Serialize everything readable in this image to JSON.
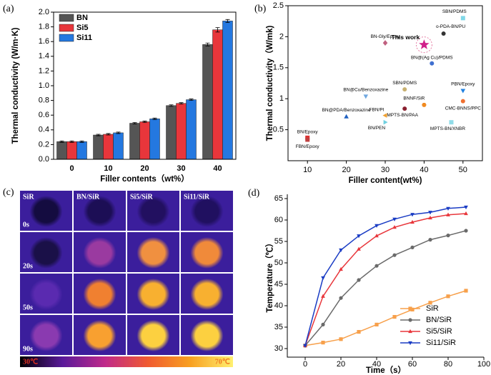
{
  "chart_data": [
    {
      "type": "bar",
      "panel_label": "(a)",
      "y_label": "Thermal conductivity (W/m·K)",
      "x_label": "Filler contents（wt%）",
      "categories": [
        "0",
        "10",
        "20",
        "30",
        "40"
      ],
      "series": [
        {
          "name": "BN",
          "color": "#555555",
          "values": [
            0.24,
            0.33,
            0.49,
            0.73,
            1.56
          ],
          "errors": [
            0.01,
            0.01,
            0.01,
            0.01,
            0.02
          ]
        },
        {
          "name": "Si5",
          "color": "#e8363b",
          "values": [
            0.24,
            0.34,
            0.51,
            0.76,
            1.76
          ],
          "errors": [
            0.01,
            0.01,
            0.01,
            0.01,
            0.03
          ]
        },
        {
          "name": "Si11",
          "color": "#2478e0",
          "values": [
            0.24,
            0.36,
            0.55,
            0.81,
            1.88
          ],
          "errors": [
            0.01,
            0.01,
            0.01,
            0.01,
            0.02
          ]
        }
      ],
      "ylim": [
        0,
        2
      ],
      "yticks": [
        {
          "value": 0,
          "label": "0.0"
        },
        0.2,
        0.4,
        0.6,
        0.8,
        {
          "value": 1,
          "label": "1.0"
        },
        1.2,
        1.4,
        1.6,
        1.8,
        {
          "value": 2,
          "label": "2.0"
        }
      ],
      "legend": "upper left"
    },
    {
      "type": "scatter",
      "panel_label": "(b)",
      "y_label": "Thermal conductivity（W/mk)",
      "x_label": "Filler content(wt%)",
      "points": [
        {
          "label": "BN/Epoxy",
          "x": 10,
          "y": 0.37,
          "color": "#e03030",
          "marker": "square"
        },
        {
          "label": "FBN/Epoxy",
          "x": 10,
          "y": 0.34,
          "color": "#c04040",
          "marker": "square"
        },
        {
          "label": "BN@PDA/Benzoxazine",
          "x": 20,
          "y": 0.71,
          "color": "#2060c0",
          "marker": "triangle"
        },
        {
          "label": "BN@Cu/Benzoxazine",
          "x": 25,
          "y": 1.04,
          "color": "#70a8e0",
          "marker": "triangle-down"
        },
        {
          "label": "BN-Gly/Epoxy",
          "x": 30,
          "y": 1.9,
          "color": "#c06080",
          "marker": "diamond"
        },
        {
          "label": "SBN/PDMS",
          "x": 35,
          "y": 1.15,
          "color": "#c8b070",
          "marker": "circle"
        },
        {
          "label": "FBN/PI",
          "x": 30,
          "y": 0.73,
          "color": "#f0a030",
          "marker": "triangle-left"
        },
        {
          "label": "BN/PEN",
          "x": 30,
          "y": 0.62,
          "color": "#70d0e0",
          "marker": "triangle-right"
        },
        {
          "label": "MPTS-BN/PAA",
          "x": 35,
          "y": 0.84,
          "color": "#8a2030",
          "marker": "circle"
        },
        {
          "label": "BNNF/SiR",
          "x": 40,
          "y": 0.9,
          "color": "#f08a20",
          "marker": "hexagon"
        },
        {
          "label": "This work",
          "x": 40,
          "y": 1.87,
          "color": "#d0208a",
          "marker": "star"
        },
        {
          "label": "BN@(Ag Cu)/PDMS",
          "x": 42,
          "y": 1.57,
          "color": "#4070d0",
          "marker": "circle"
        },
        {
          "label": "o-PDA-BN/PU",
          "x": 45,
          "y": 2.05,
          "color": "#333333",
          "marker": "circle"
        },
        {
          "label": "SBN/PDMS",
          "x": 50,
          "y": 2.3,
          "color": "#80d8e8",
          "marker": "square"
        },
        {
          "label": "PBN/Epoxy",
          "x": 50,
          "y": 1.13,
          "color": "#2080e0",
          "marker": "triangle-down"
        },
        {
          "label": "CMC-BNNS/PPC",
          "x": 50,
          "y": 0.96,
          "color": "#f07030",
          "marker": "circle"
        },
        {
          "label": "MPTS-BN/XNBR",
          "x": 47,
          "y": 0.62,
          "color": "#90dce8",
          "marker": "square"
        }
      ],
      "xlim": [
        5,
        55
      ],
      "xticks": [
        10,
        20,
        30,
        40,
        50
      ],
      "ylim": [
        0,
        2.5
      ],
      "yticks": [
        0.5,
        1,
        1.5,
        2,
        2.5
      ]
    },
    {
      "type": "line",
      "panel_label": "(d)",
      "y_label": "Temperature（℃）",
      "x_label": "Time（s）",
      "x": [
        0,
        10,
        20,
        30,
        40,
        50,
        60,
        70,
        80,
        90
      ],
      "series": [
        {
          "name": "SiR",
          "color": "#f7a04b",
          "marker": "square",
          "values": [
            30.7,
            31.4,
            32.2,
            33.9,
            35.6,
            37.4,
            39.1,
            40.7,
            42.2,
            43.5
          ]
        },
        {
          "name": "BN/SiR",
          "color": "#6a6a6a",
          "marker": "circle",
          "values": [
            30.7,
            35.6,
            41.8,
            46.0,
            49.3,
            51.8,
            53.6,
            55.4,
            56.4,
            57.5
          ]
        },
        {
          "name": "Si5/SiR",
          "color": "#e8363b",
          "marker": "triangle",
          "values": [
            30.7,
            42.2,
            48.5,
            53.2,
            56.3,
            58.3,
            59.5,
            60.5,
            61.2,
            61.5
          ]
        },
        {
          "name": "Si11/SiR",
          "color": "#1a3cc4",
          "marker": "triangle-down",
          "values": [
            30.7,
            46.5,
            53.0,
            56.3,
            58.7,
            60.2,
            61.3,
            61.8,
            62.7,
            63.0
          ]
        }
      ],
      "xlim": [
        -10,
        100
      ],
      "xticks": [
        0,
        20,
        40,
        60,
        80,
        100
      ],
      "ylim": [
        28,
        66
      ],
      "yticks": [
        30,
        35,
        40,
        45,
        50,
        55,
        60,
        65
      ],
      "legend": "lower right"
    }
  ],
  "thermal_images": {
    "panel_label": "(c)",
    "columns": [
      "SiR",
      "BN/SiR",
      "Si5/SiR",
      "Si11/SiR"
    ],
    "rows": [
      "0s",
      "20s",
      "50s",
      "90s"
    ],
    "colorbar_min_label": "30℃",
    "colorbar_max_label": "70℃",
    "background_color": "#3b1e9c",
    "spot_colors": [
      [
        "#140c40",
        "#1c0e55",
        "#221060",
        "#201060"
      ],
      [
        "#1a1048",
        "#9a3aa0",
        "#f09040",
        "#f08a3a"
      ],
      [
        "#5a2ab0",
        "#f08030",
        "#f8b030",
        "#f8b030"
      ],
      [
        "#8a3ab0",
        "#f8a030",
        "#fcd040",
        "#fcd040"
      ]
    ],
    "colorbar_colors": [
      "#000000",
      "#5a1a9a",
      "#c02a8a",
      "#f05a30",
      "#f8a020",
      "#fff070"
    ]
  }
}
